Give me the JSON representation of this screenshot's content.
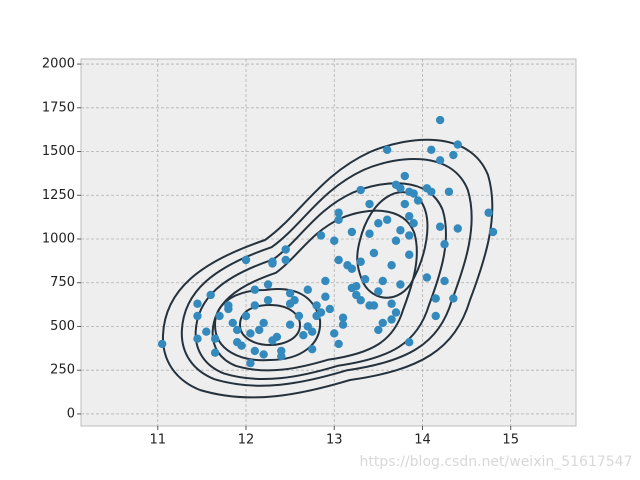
{
  "chart_data": {
    "type": "scatter",
    "x": [
      11.05,
      11.45,
      11.45,
      11.45,
      11.55,
      11.6,
      11.65,
      11.65,
      11.7,
      11.8,
      11.8,
      11.85,
      11.9,
      11.9,
      11.95,
      12.0,
      12.0,
      12.05,
      12.05,
      12.1,
      12.1,
      12.1,
      12.15,
      12.2,
      12.2,
      12.25,
      12.25,
      12.3,
      12.3,
      12.3,
      12.35,
      12.4,
      12.4,
      12.45,
      12.45,
      12.5,
      12.5,
      12.5,
      12.55,
      12.6,
      12.65,
      12.7,
      12.7,
      12.75,
      12.75,
      12.8,
      12.8,
      12.85,
      12.85,
      12.9,
      12.9,
      12.95,
      13.0,
      13.0,
      13.05,
      13.05,
      13.05,
      13.05,
      13.1,
      13.1,
      13.15,
      13.2,
      13.2,
      13.2,
      13.25,
      13.25,
      13.3,
      13.3,
      13.3,
      13.35,
      13.4,
      13.4,
      13.45,
      13.45,
      13.5,
      13.5,
      13.5,
      13.55,
      13.55,
      13.6,
      13.6,
      13.65,
      13.65,
      13.7,
      13.7,
      13.7,
      13.75,
      13.75,
      13.75,
      13.8,
      13.8,
      13.85,
      13.85,
      13.85,
      13.85,
      13.85,
      13.9,
      13.9,
      13.95,
      14.05,
      14.05,
      14.1,
      14.1,
      14.15,
      14.15,
      14.2,
      14.2,
      14.2,
      14.25,
      14.3,
      14.35,
      14.35,
      14.4,
      14.4,
      14.75,
      14.8,
      14.25,
      13.4,
      13.65
    ],
    "values": [
      400,
      430,
      560,
      630,
      470,
      680,
      350,
      430,
      560,
      620,
      600,
      520,
      480,
      410,
      390,
      880,
      560,
      290,
      460,
      620,
      710,
      360,
      480,
      520,
      340,
      740,
      650,
      860,
      870,
      420,
      440,
      330,
      360,
      940,
      880,
      690,
      510,
      630,
      650,
      560,
      450,
      710,
      500,
      470,
      370,
      620,
      560,
      580,
      1020,
      670,
      760,
      600,
      990,
      460,
      1110,
      1150,
      880,
      400,
      510,
      550,
      850,
      720,
      830,
      1040,
      680,
      730,
      870,
      650,
      1280,
      770,
      620,
      1200,
      920,
      620,
      700,
      480,
      1090,
      520,
      760,
      1110,
      1510,
      850,
      630,
      1310,
      580,
      990,
      1290,
      740,
      1050,
      1360,
      1200,
      1020,
      1130,
      1270,
      910,
      410,
      1090,
      1260,
      1220,
      1290,
      780,
      1270,
      1510,
      560,
      660,
      1680,
      1450,
      1070,
      970,
      1270,
      660,
      1480,
      1540,
      1060,
      1150,
      1040,
      760,
      1030,
      540
    ],
    "color": "#348abd",
    "xlim": [
      10.13,
      15.74
    ],
    "xticks": [
      11,
      12,
      13,
      14,
      15
    ],
    "ylim": [
      -69,
      2029
    ],
    "yticks": [
      0,
      250,
      500,
      750,
      1000,
      1250,
      1500,
      1750,
      2000
    ],
    "grid": true
  },
  "watermark": "https://blog.csdn.net/weixin_51617547"
}
